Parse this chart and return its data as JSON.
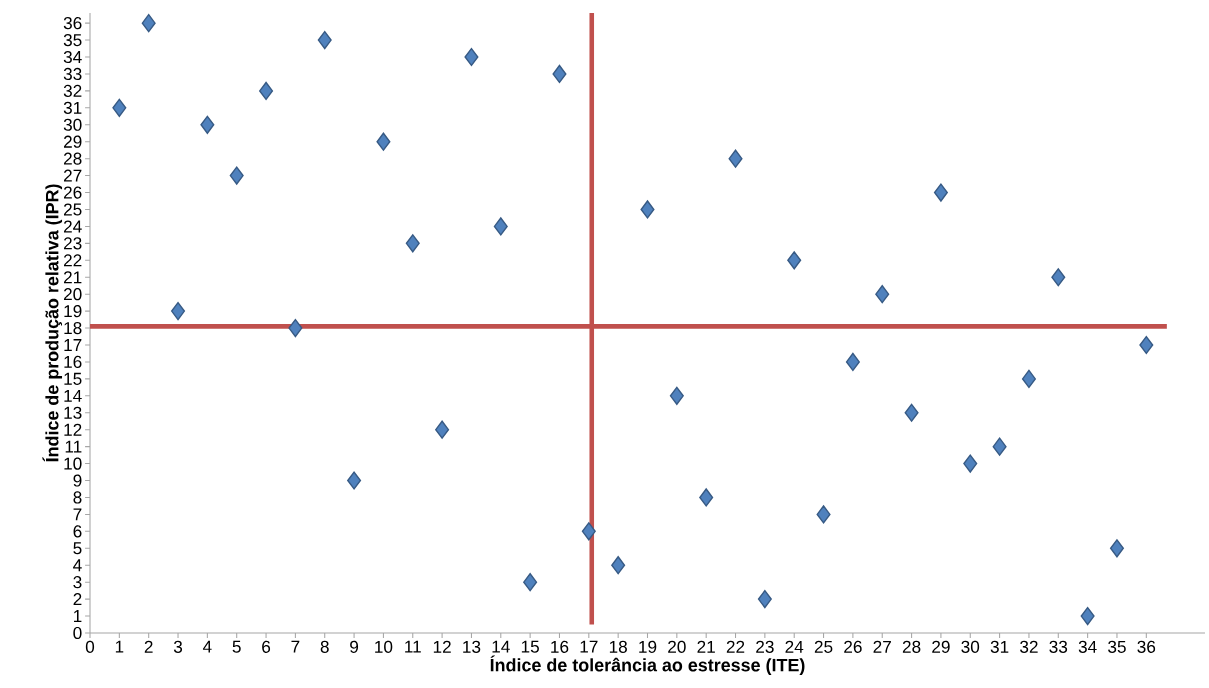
{
  "chart_data": {
    "type": "scatter",
    "xlabel": "Índice de tolerância ao estresse (ITE)",
    "ylabel": "Índice de produção  relativa (IPR)",
    "x": [
      1,
      2,
      3,
      4,
      5,
      6,
      7,
      8,
      9,
      10,
      11,
      12,
      13,
      14,
      15,
      16,
      17,
      18,
      19,
      20,
      21,
      22,
      23,
      24,
      25,
      26,
      27,
      28,
      29,
      30,
      31,
      32,
      33,
      34,
      35,
      36
    ],
    "values": [
      31,
      36,
      19,
      30,
      27,
      32,
      18,
      35,
      9,
      29,
      23,
      12,
      34,
      24,
      3,
      33,
      6,
      4,
      25,
      14,
      8,
      28,
      2,
      22,
      7,
      16,
      20,
      13,
      26,
      10,
      11,
      15,
      21,
      1,
      5,
      17
    ],
    "color": "#4f81bd",
    "marker": "diamond",
    "xlim": [
      0,
      38
    ],
    "ylim": [
      0,
      36.6
    ],
    "xticks": [
      0,
      1,
      2,
      3,
      4,
      5,
      6,
      7,
      8,
      9,
      10,
      11,
      12,
      13,
      14,
      15,
      16,
      17,
      18,
      19,
      20,
      21,
      22,
      23,
      24,
      25,
      26,
      27,
      28,
      29,
      30,
      31,
      32,
      33,
      34,
      35,
      36
    ],
    "yticks": [
      0,
      1,
      2,
      3,
      4,
      5,
      6,
      7,
      8,
      9,
      10,
      11,
      12,
      13,
      14,
      15,
      16,
      17,
      18,
      19,
      20,
      21,
      22,
      23,
      24,
      25,
      26,
      27,
      28,
      29,
      30,
      31,
      32,
      33,
      34,
      35,
      36
    ],
    "ref_lines": [
      {
        "axis": "x",
        "value": 17.1,
        "color": "#c0504d"
      },
      {
        "axis": "y",
        "value": 18.1,
        "color": "#c0504d"
      }
    ],
    "grid": false
  }
}
